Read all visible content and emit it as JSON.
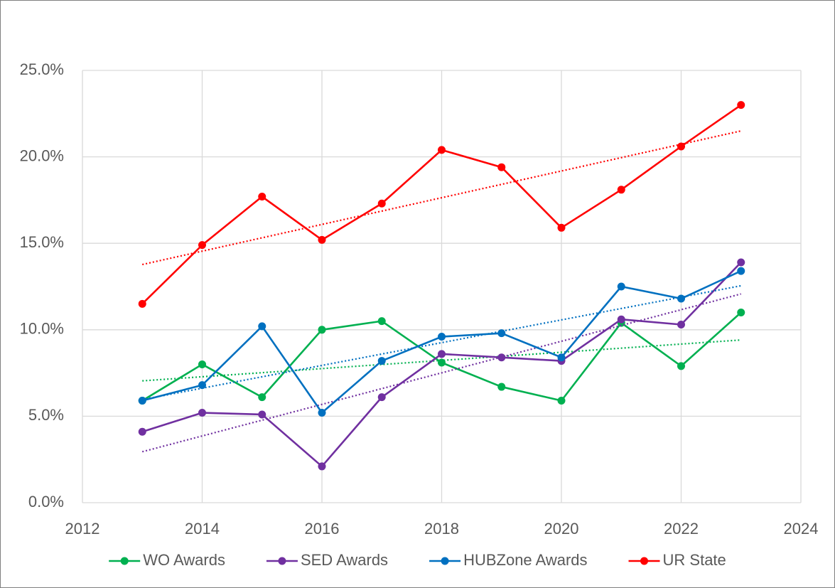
{
  "chart_data": {
    "type": "line",
    "x": [
      2013,
      2014,
      2015,
      2016,
      2017,
      2018,
      2019,
      2020,
      2021,
      2022,
      2023
    ],
    "series": [
      {
        "name": "WO Awards",
        "color": "#00b050",
        "values": [
          5.9,
          8.0,
          6.1,
          10.0,
          10.5,
          8.1,
          6.7,
          5.9,
          10.4,
          7.9,
          11.0
        ]
      },
      {
        "name": "SED Awards",
        "color": "#7030a0",
        "values": [
          4.1,
          5.2,
          5.1,
          2.1,
          6.1,
          8.6,
          8.4,
          8.2,
          10.6,
          10.3,
          13.9
        ]
      },
      {
        "name": "HUBZone Awards",
        "color": "#0070c0",
        "values": [
          5.9,
          6.8,
          10.2,
          5.2,
          8.2,
          9.6,
          9.8,
          8.4,
          12.5,
          11.8,
          13.4
        ]
      },
      {
        "name": "UR State",
        "color": "#ff0000",
        "values": [
          11.5,
          14.9,
          17.7,
          15.2,
          17.3,
          20.4,
          19.4,
          15.9,
          18.1,
          20.6,
          23.0
        ]
      }
    ],
    "trendline": "linear",
    "xlim": [
      2012,
      2024
    ],
    "xticks": [
      2012,
      2014,
      2016,
      2018,
      2020,
      2022,
      2024
    ],
    "ylim": [
      0,
      25
    ],
    "yticks": [
      {
        "value": 0,
        "label": "0.0%"
      },
      {
        "value": 5,
        "label": "5.0%"
      },
      {
        "value": 10,
        "label": "10.0%"
      },
      {
        "value": 15,
        "label": "15.0%"
      },
      {
        "value": 20,
        "label": "20.0%"
      },
      {
        "value": 25,
        "label": "25.0%"
      }
    ],
    "grid": true,
    "legend": "bottom"
  }
}
